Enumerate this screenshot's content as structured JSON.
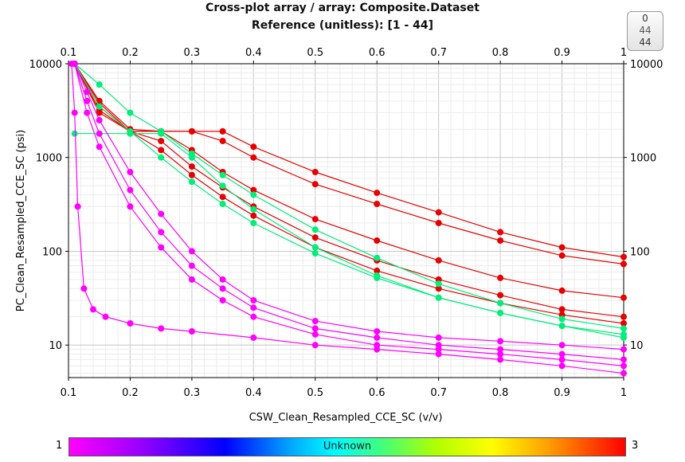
{
  "chart_data": {
    "type": "scatter",
    "title": "Cross-plot array / array: Composite.Dataset",
    "subtitle": "Reference (unitless): [1 - 44]",
    "xlabel": "CSW_Clean_Resampled_CCE_SC (v/v)",
    "ylabel": "PC_Clean_Resampled_CCE_SC (psi)",
    "xlim": [
      0.1,
      1.0
    ],
    "ylim": [
      4.5,
      10000
    ],
    "yscale": "log",
    "x_ticks": [
      "0.1",
      "0.2",
      "0.3",
      "0.4",
      "0.5",
      "0.6",
      "0.7",
      "0.8",
      "0.9",
      "1"
    ],
    "y_ticks": [
      "10",
      "100",
      "1000",
      "10000"
    ],
    "grid": true,
    "colorbar": {
      "min_label": "1",
      "max_label": "3",
      "center_label": "Unknown"
    },
    "series": [
      {
        "name": "red-1",
        "color": "#e80000",
        "x": [
          0.11,
          0.15,
          0.2,
          0.25,
          0.3,
          0.35,
          0.4,
          0.5,
          0.6,
          0.7,
          0.8,
          0.9,
          1.0
        ],
        "y": [
          10000,
          4000,
          2000,
          1900,
          1900,
          1900,
          1300,
          700,
          420,
          260,
          160,
          110,
          87
        ]
      },
      {
        "name": "red-2",
        "color": "#e80000",
        "x": [
          0.11,
          0.15,
          0.2,
          0.25,
          0.3,
          0.35,
          0.4,
          0.5,
          0.6,
          0.7,
          0.8,
          0.9,
          1.0
        ],
        "y": [
          10000,
          3800,
          1900,
          1900,
          1900,
          1500,
          1000,
          520,
          320,
          200,
          130,
          90,
          73
        ]
      },
      {
        "name": "red-3",
        "color": "#e80000",
        "x": [
          0.11,
          0.15,
          0.2,
          0.25,
          0.3,
          0.35,
          0.4,
          0.5,
          0.6,
          0.7,
          0.8,
          0.9,
          1.0
        ],
        "y": [
          10000,
          3500,
          1900,
          1900,
          1200,
          700,
          450,
          220,
          130,
          80,
          52,
          38,
          32
        ]
      },
      {
        "name": "red-4",
        "color": "#e80000",
        "x": [
          0.11,
          0.15,
          0.2,
          0.25,
          0.3,
          0.35,
          0.4,
          0.5,
          0.6,
          0.7,
          0.8,
          0.9,
          1.0
        ],
        "y": [
          10000,
          3200,
          1900,
          1500,
          800,
          480,
          300,
          140,
          80,
          50,
          34,
          24,
          20
        ]
      },
      {
        "name": "red-5",
        "color": "#e80000",
        "x": [
          0.11,
          0.15,
          0.2,
          0.25,
          0.3,
          0.35,
          0.4,
          0.5,
          0.6,
          0.7,
          0.8,
          0.9,
          1.0
        ],
        "y": [
          10000,
          3000,
          1900,
          1200,
          650,
          380,
          240,
          110,
          62,
          40,
          28,
          21,
          17
        ]
      },
      {
        "name": "green-1",
        "color": "#00ee7a",
        "x": [
          0.11,
          0.15,
          0.2,
          0.25,
          0.3,
          0.35,
          0.4,
          0.5,
          0.6,
          0.7,
          0.8,
          0.9,
          1.0
        ],
        "y": [
          10000,
          6000,
          3000,
          1900,
          1100,
          650,
          400,
          170,
          85,
          45,
          28,
          19,
          15
        ]
      },
      {
        "name": "green-2",
        "color": "#00ee7a",
        "x": [
          0.11,
          0.15,
          0.2,
          0.25,
          0.3,
          0.35,
          0.4,
          0.5,
          0.6,
          0.7,
          0.8,
          0.9,
          1.0
        ],
        "y": [
          10000,
          3500,
          1900,
          1000,
          550,
          320,
          200,
          95,
          52,
          32,
          22,
          16,
          13
        ]
      },
      {
        "name": "green-3",
        "color": "#00ee7a",
        "x": [
          0.11,
          0.15,
          0.2,
          0.25,
          0.3,
          0.35,
          0.4,
          0.5,
          0.6,
          0.7,
          0.8,
          0.9,
          1.0
        ],
        "y": [
          1800,
          1800,
          1800,
          1800,
          1000,
          500,
          280,
          110,
          55,
          32,
          22,
          16,
          12
        ]
      },
      {
        "name": "magenta-1",
        "color": "#ff00ff",
        "x": [
          0.11,
          0.13,
          0.15,
          0.2,
          0.25,
          0.3,
          0.35,
          0.4,
          0.5,
          0.6,
          0.7,
          0.8,
          0.9,
          1.0
        ],
        "y": [
          10000,
          5000,
          2500,
          700,
          250,
          100,
          50,
          30,
          18,
          14,
          12,
          11,
          10,
          9
        ]
      },
      {
        "name": "magenta-2",
        "color": "#ff00ff",
        "x": [
          0.11,
          0.13,
          0.15,
          0.2,
          0.25,
          0.3,
          0.35,
          0.4,
          0.5,
          0.6,
          0.7,
          0.8,
          0.9,
          1.0
        ],
        "y": [
          10000,
          4000,
          1800,
          450,
          160,
          70,
          40,
          25,
          15,
          12,
          10,
          9,
          8,
          7
        ]
      },
      {
        "name": "magenta-3",
        "color": "#ff00ff",
        "x": [
          0.11,
          0.13,
          0.15,
          0.2,
          0.25,
          0.3,
          0.35,
          0.4,
          0.5,
          0.6,
          0.7,
          0.8,
          0.9,
          1.0
        ],
        "y": [
          10000,
          3000,
          1300,
          300,
          110,
          50,
          30,
          20,
          13,
          10,
          9,
          8,
          7,
          6
        ]
      },
      {
        "name": "magenta-4",
        "color": "#ff00ff",
        "x": [
          0.105,
          0.11,
          0.115,
          0.125,
          0.14,
          0.16,
          0.2,
          0.25,
          0.3,
          0.4,
          0.5,
          0.6,
          0.7,
          0.8,
          0.9,
          1.0
        ],
        "y": [
          10000,
          3000,
          300,
          40,
          24,
          20,
          17,
          15,
          14,
          12,
          10,
          9,
          8,
          7,
          6,
          5
        ]
      }
    ]
  }
}
